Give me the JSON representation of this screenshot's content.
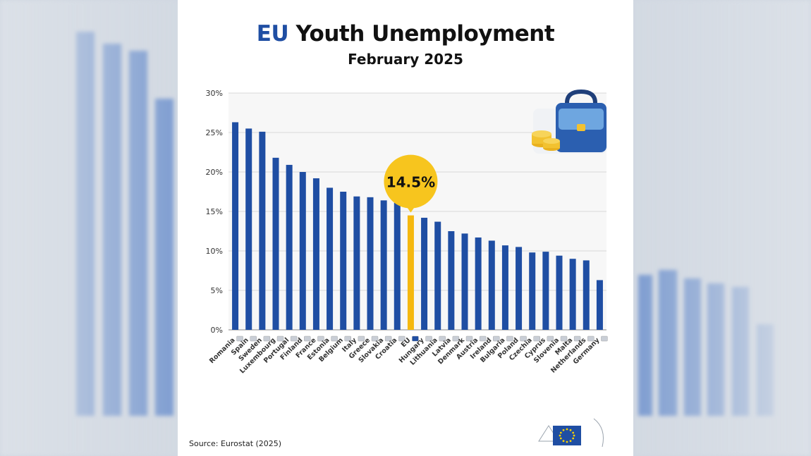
{
  "title": {
    "prefix": "EU",
    "rest": "Youth Unemployment"
  },
  "subtitle": "February 2025",
  "source": "Source: Eurostat (2025)",
  "colors": {
    "bar": "#1f4ea3",
    "highlight_bar": "#f5b80f",
    "callout": "#f7c51e",
    "grid": "#d9d9d9"
  },
  "chart_data": {
    "type": "bar",
    "title": "EU Youth Unemployment",
    "subtitle": "February 2025",
    "categories": [
      "Romania",
      "Spain",
      "Sweden",
      "Luxembourg",
      "Portugal",
      "Finland",
      "France",
      "Estonia",
      "Belgium",
      "Italy",
      "Greece",
      "Slovakia",
      "Croatia",
      "EU",
      "Hungary",
      "Lithuania",
      "Latvia",
      "Denmark",
      "Austria",
      "Ireland",
      "Bulgaria",
      "Poland",
      "Czechia",
      "Cyprus",
      "Slovenia",
      "Malta",
      "Netherlands",
      "Germany"
    ],
    "values": [
      26.3,
      25.5,
      25.1,
      21.8,
      20.9,
      20.0,
      19.2,
      18.0,
      17.5,
      16.9,
      16.8,
      16.4,
      16.1,
      14.5,
      14.2,
      13.7,
      12.5,
      12.2,
      11.7,
      11.3,
      10.7,
      10.5,
      9.8,
      9.9,
      9.4,
      9.0,
      8.8,
      6.3
    ],
    "highlight": {
      "category": "EU",
      "label": "14.5%"
    },
    "yticks": [
      "0%",
      "5%",
      "10%",
      "15%",
      "20%",
      "25%",
      "30%"
    ],
    "ylim": [
      0,
      30
    ],
    "xlabel": "",
    "ylabel": "",
    "grid": true,
    "legend": "none"
  }
}
